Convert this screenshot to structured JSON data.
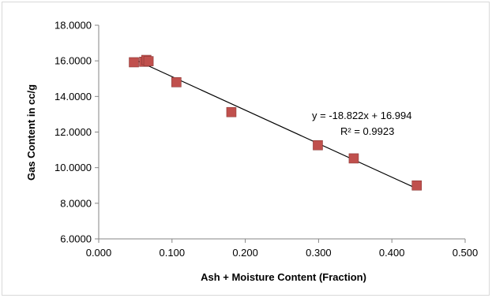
{
  "chart_data": {
    "type": "scatter",
    "title": "",
    "xlabel": "Ash + Moisture Content (Fraction)",
    "ylabel": "Gas Content in cc/g",
    "xlim": [
      0,
      0.5
    ],
    "ylim": [
      6,
      18
    ],
    "x_ticks": [
      "0.000",
      "0.100",
      "0.200",
      "0.300",
      "0.400",
      "0.500"
    ],
    "y_ticks": [
      "6.0000",
      "8.0000",
      "10.0000",
      "12.0000",
      "14.0000",
      "16.0000",
      "18.0000"
    ],
    "grid": false,
    "legend": "none",
    "series": [
      {
        "points": [
          {
            "x": 0.048,
            "y": 15.92
          },
          {
            "x": 0.062,
            "y": 15.95
          },
          {
            "x": 0.065,
            "y": 16.05
          },
          {
            "x": 0.068,
            "y": 15.98
          },
          {
            "x": 0.106,
            "y": 14.8
          },
          {
            "x": 0.181,
            "y": 13.12
          },
          {
            "x": 0.299,
            "y": 11.26
          },
          {
            "x": 0.348,
            "y": 10.52
          },
          {
            "x": 0.434,
            "y": 9.0
          }
        ],
        "color": "#c0504d",
        "marker": "square"
      }
    ],
    "trendline": {
      "slope": -18.822,
      "intercept": 16.994,
      "x_range": [
        0.048,
        0.434
      ],
      "equation_label": "y = -18.822x + 16.994",
      "r2_label": "R² = 0.9923",
      "color": "#000000"
    }
  }
}
